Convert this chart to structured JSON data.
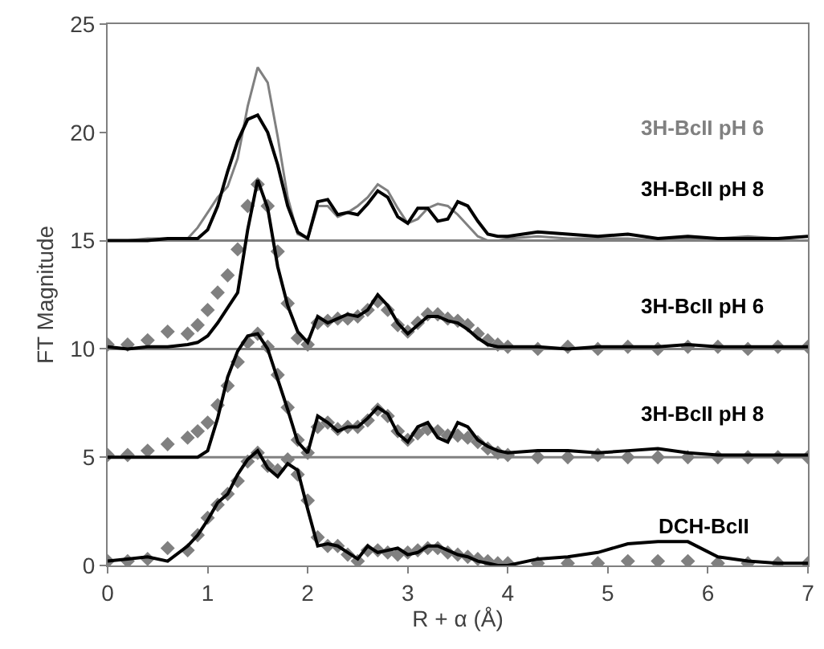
{
  "chart_data": {
    "type": "line",
    "xlabel": "R + α (Å)",
    "ylabel": "FT Magnitude",
    "x": [
      0,
      0.2,
      0.4,
      0.6,
      0.8,
      0.9,
      1.0,
      1.1,
      1.2,
      1.3,
      1.4,
      1.5,
      1.6,
      1.7,
      1.8,
      1.9,
      2.0,
      2.1,
      2.2,
      2.3,
      2.4,
      2.5,
      2.6,
      2.7,
      2.8,
      2.9,
      3.0,
      3.1,
      3.2,
      3.3,
      3.4,
      3.5,
      3.6,
      3.7,
      3.8,
      3.9,
      4.0,
      4.3,
      4.6,
      4.9,
      5.2,
      5.5,
      5.8,
      6.1,
      6.4,
      6.7,
      7.0
    ],
    "series": [
      {
        "color": "#808080",
        "marker": "none",
        "values": [
          15.0,
          15.0,
          15.1,
          15.1,
          15.1,
          15.6,
          16.3,
          17.0,
          17.5,
          18.8,
          21.2,
          23.0,
          22.3,
          19.8,
          17.0,
          15.3,
          15.1,
          16.6,
          16.6,
          16.1,
          16.3,
          16.6,
          17.0,
          17.6,
          17.3,
          16.5,
          15.8,
          16.0,
          16.5,
          16.7,
          16.6,
          16.2,
          15.7,
          15.2,
          15.0,
          15.0,
          15.1,
          15.2,
          15.1,
          15.1,
          15.1,
          15.0,
          15.1,
          15.1,
          15.2,
          15.1,
          15.2
        ]
      },
      {
        "color": "#000000",
        "marker": "none",
        "values": [
          15.0,
          15.0,
          15.0,
          15.1,
          15.1,
          15.1,
          15.5,
          16.6,
          18.2,
          19.6,
          20.6,
          20.8,
          20.0,
          18.5,
          16.6,
          15.4,
          15.1,
          16.8,
          16.9,
          16.2,
          16.3,
          16.2,
          16.7,
          17.3,
          17.0,
          16.1,
          15.8,
          16.5,
          16.5,
          15.9,
          16.0,
          16.8,
          16.6,
          15.9,
          15.3,
          15.2,
          15.2,
          15.4,
          15.3,
          15.2,
          15.3,
          15.1,
          15.2,
          15.1,
          15.1,
          15.1,
          15.2
        ]
      },
      {
        "type": "scatter",
        "color": "#808080",
        "marker": "diamond",
        "values": [
          10.2,
          10.2,
          10.4,
          10.8,
          10.7,
          11.1,
          11.8,
          12.6,
          13.4,
          14.6,
          16.6,
          17.6,
          16.6,
          14.5,
          12.1,
          10.5,
          10.2,
          11.2,
          11.3,
          11.4,
          11.4,
          11.5,
          11.8,
          12.2,
          11.8,
          11.1,
          10.8,
          11.2,
          11.6,
          11.6,
          11.4,
          11.3,
          11.1,
          10.7,
          10.4,
          10.2,
          10.1,
          10.0,
          10.1,
          10.0,
          10.1,
          10.0,
          10.1,
          10.1,
          10.0,
          10.1,
          10.1
        ]
      },
      {
        "color": "#000000",
        "marker": "none",
        "values": [
          10.1,
          10.0,
          10.1,
          10.1,
          10.2,
          10.3,
          10.6,
          11.2,
          11.9,
          12.6,
          15.5,
          17.8,
          16.5,
          13.8,
          12.0,
          10.8,
          10.3,
          11.5,
          11.2,
          11.4,
          11.6,
          11.5,
          11.8,
          12.5,
          12.0,
          11.2,
          10.7,
          11.1,
          11.5,
          11.5,
          11.3,
          11.2,
          10.9,
          10.5,
          10.2,
          10.1,
          10.1,
          10.1,
          10.0,
          10.1,
          10.1,
          10.1,
          10.2,
          10.1,
          10.1,
          10.1,
          10.1
        ]
      },
      {
        "type": "scatter",
        "color": "#808080",
        "marker": "diamond",
        "values": [
          5.1,
          5.1,
          5.3,
          5.6,
          5.9,
          6.2,
          6.6,
          7.4,
          8.3,
          9.4,
          10.3,
          10.7,
          10.1,
          8.8,
          7.3,
          5.8,
          5.2,
          6.4,
          6.6,
          6.3,
          6.4,
          6.4,
          6.7,
          7.2,
          6.9,
          6.2,
          5.8,
          6.1,
          6.3,
          6.2,
          6.0,
          6.0,
          5.9,
          5.7,
          5.4,
          5.2,
          5.1,
          5.0,
          5.0,
          5.1,
          5.0,
          5.0,
          5.0,
          5.0,
          5.0,
          5.0,
          5.0
        ]
      },
      {
        "color": "#000000",
        "marker": "none",
        "values": [
          5.0,
          5.0,
          5.0,
          5.0,
          5.0,
          5.0,
          5.3,
          6.8,
          8.7,
          9.9,
          10.6,
          10.7,
          10.0,
          8.6,
          7.2,
          5.7,
          5.2,
          6.9,
          6.6,
          6.2,
          6.4,
          6.4,
          6.8,
          7.3,
          7.0,
          6.1,
          5.7,
          6.4,
          6.6,
          5.9,
          5.7,
          6.6,
          6.4,
          5.8,
          5.5,
          5.3,
          5.2,
          5.3,
          5.3,
          5.2,
          5.3,
          5.4,
          5.2,
          5.1,
          5.1,
          5.1,
          5.1
        ]
      },
      {
        "type": "scatter",
        "color": "#808080",
        "marker": "diamond",
        "values": [
          0.2,
          0.2,
          0.3,
          0.8,
          0.7,
          1.4,
          2.2,
          2.8,
          3.3,
          3.9,
          4.8,
          5.2,
          4.6,
          4.4,
          4.9,
          4.2,
          3.0,
          1.3,
          0.9,
          0.9,
          0.5,
          0.2,
          0.7,
          0.7,
          0.6,
          0.5,
          0.6,
          0.7,
          0.8,
          0.8,
          0.6,
          0.5,
          0.4,
          0.3,
          0.2,
          0.1,
          0.1,
          0.1,
          0.1,
          0.1,
          0.2,
          0.2,
          0.2,
          0.1,
          0.1,
          0.1,
          0.1
        ]
      },
      {
        "color": "#000000",
        "marker": "none",
        "values": [
          0.2,
          0.3,
          0.4,
          0.2,
          0.9,
          1.4,
          2.1,
          2.9,
          3.3,
          4.2,
          4.9,
          5.3,
          4.5,
          4.1,
          4.7,
          4.4,
          2.6,
          0.9,
          1.0,
          0.9,
          0.6,
          0.3,
          0.9,
          0.6,
          0.7,
          0.8,
          0.5,
          0.6,
          0.9,
          0.9,
          0.7,
          0.5,
          0.4,
          0.2,
          0.1,
          0.0,
          0.0,
          0.3,
          0.4,
          0.6,
          1.0,
          1.1,
          1.1,
          0.4,
          0.2,
          0.1,
          0.1
        ]
      }
    ],
    "ref_lines": [
      {
        "axis": "y",
        "value": 15,
        "color": "#808080"
      },
      {
        "axis": "y",
        "value": 10,
        "color": "#808080"
      },
      {
        "axis": "y",
        "value": 5,
        "color": "#808080"
      }
    ],
    "annotations": [
      "3H-BcII pH 6",
      "3H-BcII pH 8",
      "3H-BcII pH 6",
      "3H-BcII pH 8",
      "DCH-BcII"
    ],
    "xlim": [
      0,
      7
    ],
    "xticks": [
      0,
      1,
      2,
      3,
      4,
      5,
      6,
      7
    ],
    "ylim": [
      0,
      25
    ],
    "yticks": [
      0,
      5,
      10,
      15,
      20,
      25
    ]
  }
}
